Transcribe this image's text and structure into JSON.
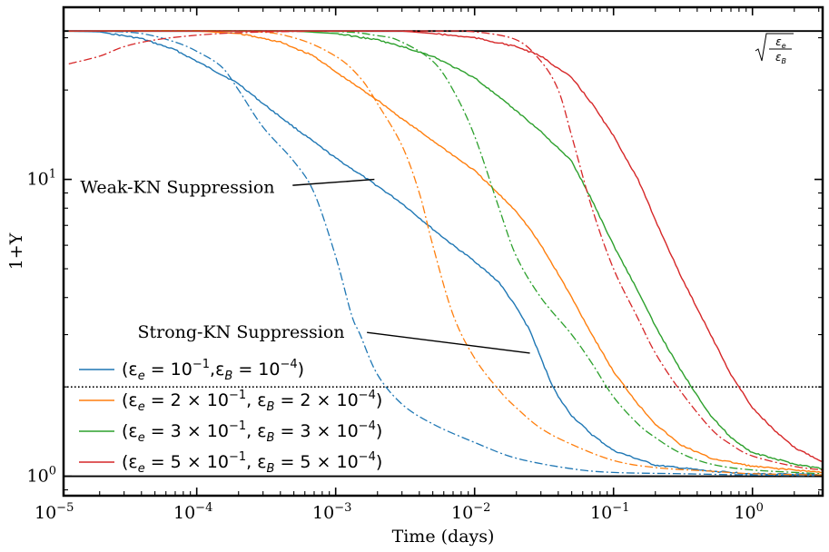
{
  "chart_data": {
    "type": "line",
    "xlabel": "Time (days)",
    "ylabel": "1+Y",
    "xscale": "log",
    "yscale": "log",
    "xlim": [
      1.1e-05,
      3.2
    ],
    "ylim": [
      0.86,
      38
    ],
    "x_ticks": [
      {
        "value": 1e-05,
        "base": "10",
        "exp": "−5"
      },
      {
        "value": 0.0001,
        "base": "10",
        "exp": "−4"
      },
      {
        "value": 0.001,
        "base": "10",
        "exp": "−3"
      },
      {
        "value": 0.01,
        "base": "10",
        "exp": "−2"
      },
      {
        "value": 0.1,
        "base": "10",
        "exp": "−1"
      },
      {
        "value": 1,
        "base": "10",
        "exp": "0"
      }
    ],
    "y_ticks": [
      {
        "value": 1,
        "base": "10",
        "exp": "0"
      },
      {
        "value": 10,
        "base": "10",
        "exp": "1"
      }
    ],
    "legend_position": "lower-left",
    "reference_lines": [
      {
        "style": "solid",
        "y": 31.6,
        "label_lines": [
          "√(ε",
          "e",
          "/ε",
          "B",
          ")"
        ]
      },
      {
        "style": "dotted",
        "y": 2.0
      },
      {
        "style": "solid",
        "y": 1.0
      }
    ],
    "annotations": [
      {
        "text": "Weak-KN Suppression",
        "text_x": 1.45e-05,
        "text_y": 9.4,
        "arrow_from": [
          0.00049,
          9.55
        ],
        "arrow_to": [
          0.0019,
          10.0
        ]
      },
      {
        "text": "Strong-KN Suppression",
        "text_x": 3.75e-05,
        "text_y": 3.05,
        "arrow_from": [
          0.00168,
          3.05
        ],
        "arrow_to": [
          0.025,
          2.6
        ]
      }
    ],
    "series": [
      {
        "name": "(εe = 10⁻¹, εB = 10⁻⁴)",
        "legend": {
          "pre": "(ε",
          "sub1": "e",
          "mid1": " = 10",
          "sup1": "−1",
          "mid2": ",ε",
          "sub2": "B",
          "mid3": " = 10",
          "sup2": "−4",
          "post": ")"
        },
        "color": "#1f77b4",
        "solid": [
          [
            1.2e-05,
            31.6
          ],
          [
            2e-05,
            31.4
          ],
          [
            4e-05,
            29.8
          ],
          [
            7e-05,
            27.3
          ],
          [
            0.0001,
            25
          ],
          [
            0.0002,
            21
          ],
          [
            0.0003,
            18
          ],
          [
            0.0005,
            15
          ],
          [
            0.001,
            11.8
          ],
          [
            0.002,
            9.5
          ],
          [
            0.003,
            8.3
          ],
          [
            0.005,
            6.8
          ],
          [
            0.007,
            6.0
          ],
          [
            0.01,
            5.3
          ],
          [
            0.015,
            4.5
          ],
          [
            0.02,
            3.7
          ],
          [
            0.025,
            3.1
          ],
          [
            0.03,
            2.5
          ],
          [
            0.035,
            2.1
          ],
          [
            0.04,
            1.85
          ],
          [
            0.05,
            1.6
          ],
          [
            0.07,
            1.38
          ],
          [
            0.1,
            1.22
          ],
          [
            0.2,
            1.09
          ],
          [
            0.5,
            1.04
          ],
          [
            1,
            1.02
          ],
          [
            3.2,
            1.01
          ]
        ],
        "dashdot": [
          [
            1.2e-05,
            31.6
          ],
          [
            2e-05,
            31.6
          ],
          [
            4e-05,
            31
          ],
          [
            7e-05,
            29
          ],
          [
            0.0001,
            27
          ],
          [
            0.00015,
            24
          ],
          [
            0.0002,
            20
          ],
          [
            0.0003,
            15
          ],
          [
            0.0005,
            11.5
          ],
          [
            0.0007,
            9
          ],
          [
            0.001,
            5.5
          ],
          [
            0.0013,
            3.5
          ],
          [
            0.0015,
            3.0
          ],
          [
            0.002,
            2.2
          ],
          [
            0.003,
            1.75
          ],
          [
            0.005,
            1.5
          ],
          [
            0.01,
            1.3
          ],
          [
            0.02,
            1.15
          ],
          [
            0.05,
            1.06
          ],
          [
            0.1,
            1.03
          ],
          [
            0.3,
            1.02
          ],
          [
            1,
            1.01
          ],
          [
            3.2,
            1.005
          ]
        ]
      },
      {
        "name": "(εe = 2×10⁻¹, εB = 2×10⁻⁴)",
        "legend": {
          "pre": "(ε",
          "sub1": "e",
          "mid1": " = 2 × 10",
          "sup1": "−1",
          "mid2": ", ε",
          "sub2": "B",
          "mid3": " = 2 × 10",
          "sup2": "−4",
          "post": ")"
        },
        "color": "#ff7f0e",
        "solid": [
          [
            1.2e-05,
            31.6
          ],
          [
            0.0001,
            31.6
          ],
          [
            0.0002,
            31
          ],
          [
            0.0004,
            29
          ],
          [
            0.0007,
            26
          ],
          [
            0.001,
            23
          ],
          [
            0.002,
            18.5
          ],
          [
            0.003,
            16
          ],
          [
            0.005,
            13.5
          ],
          [
            0.01,
            10.7
          ],
          [
            0.015,
            8.9
          ],
          [
            0.02,
            7.8
          ],
          [
            0.025,
            6.8
          ],
          [
            0.03,
            6
          ],
          [
            0.04,
            4.8
          ],
          [
            0.05,
            4
          ],
          [
            0.07,
            3.0
          ],
          [
            0.1,
            2.25
          ],
          [
            0.15,
            1.75
          ],
          [
            0.2,
            1.5
          ],
          [
            0.3,
            1.28
          ],
          [
            0.5,
            1.15
          ],
          [
            1,
            1.08
          ],
          [
            3.2,
            1.03
          ]
        ],
        "dashdot": [
          [
            1.2e-05,
            31.6
          ],
          [
            0.0002,
            31.6
          ],
          [
            0.0005,
            30
          ],
          [
            0.001,
            26
          ],
          [
            0.0015,
            22
          ],
          [
            0.002,
            18
          ],
          [
            0.003,
            13
          ],
          [
            0.004,
            9
          ],
          [
            0.005,
            6
          ],
          [
            0.007,
            3.5
          ],
          [
            0.01,
            2.5
          ],
          [
            0.015,
            1.95
          ],
          [
            0.02,
            1.7
          ],
          [
            0.03,
            1.45
          ],
          [
            0.05,
            1.28
          ],
          [
            0.1,
            1.13
          ],
          [
            0.2,
            1.07
          ],
          [
            0.5,
            1.04
          ],
          [
            1,
            1.02
          ],
          [
            3.2,
            1.01
          ]
        ]
      },
      {
        "name": "(εe = 3×10⁻¹, εB = 3×10⁻⁴)",
        "legend": {
          "pre": "(ε",
          "sub1": "e",
          "mid1": " = 3 × 10",
          "sup1": "−1",
          "mid2": ", ε",
          "sub2": "B",
          "mid3": " = 3 × 10",
          "sup2": "−4",
          "post": ")"
        },
        "color": "#2ca02c",
        "solid": [
          [
            1.2e-05,
            31.6
          ],
          [
            0.0005,
            31.6
          ],
          [
            0.001,
            31
          ],
          [
            0.002,
            29.5
          ],
          [
            0.003,
            28
          ],
          [
            0.005,
            26
          ],
          [
            0.01,
            22
          ],
          [
            0.02,
            17
          ],
          [
            0.03,
            14.5
          ],
          [
            0.05,
            11.5
          ],
          [
            0.07,
            8.5
          ],
          [
            0.1,
            6
          ],
          [
            0.15,
            4.2
          ],
          [
            0.2,
            3.2
          ],
          [
            0.3,
            2.3
          ],
          [
            0.5,
            1.6
          ],
          [
            0.7,
            1.35
          ],
          [
            1,
            1.2
          ],
          [
            2,
            1.1
          ],
          [
            3.2,
            1.06
          ]
        ],
        "dashdot": [
          [
            1.2e-05,
            31.6
          ],
          [
            0.0007,
            31.6
          ],
          [
            0.002,
            30.5
          ],
          [
            0.003,
            29
          ],
          [
            0.005,
            25
          ],
          [
            0.007,
            20
          ],
          [
            0.01,
            14
          ],
          [
            0.015,
            8
          ],
          [
            0.02,
            5.5
          ],
          [
            0.03,
            4
          ],
          [
            0.05,
            3
          ],
          [
            0.07,
            2.4
          ],
          [
            0.1,
            1.85
          ],
          [
            0.15,
            1.5
          ],
          [
            0.2,
            1.35
          ],
          [
            0.3,
            1.2
          ],
          [
            0.5,
            1.1
          ],
          [
            1,
            1.05
          ],
          [
            3.2,
            1.02
          ]
        ]
      },
      {
        "name": "(εe = 5×10⁻¹, εB = 5×10⁻⁴)",
        "legend": {
          "pre": "(ε",
          "sub1": "e",
          "mid1": " = 5 × 10",
          "sup1": "−1",
          "mid2": ", ε",
          "sub2": "B",
          "mid3": " = 5 × 10",
          "sup2": "−4",
          "post": ")"
        },
        "color": "#d62728",
        "solid": [
          [
            1.2e-05,
            31.6
          ],
          [
            0.003,
            31.6
          ],
          [
            0.005,
            31
          ],
          [
            0.01,
            30
          ],
          [
            0.02,
            28
          ],
          [
            0.03,
            26
          ],
          [
            0.05,
            22
          ],
          [
            0.07,
            18
          ],
          [
            0.1,
            14
          ],
          [
            0.15,
            10
          ],
          [
            0.2,
            7.3
          ],
          [
            0.3,
            4.8
          ],
          [
            0.5,
            3
          ],
          [
            0.7,
            2.2
          ],
          [
            1,
            1.7
          ],
          [
            1.5,
            1.4
          ],
          [
            2,
            1.25
          ],
          [
            3.2,
            1.12
          ]
        ],
        "dashdot": [
          [
            1.2e-05,
            24.5
          ],
          [
            2e-05,
            26
          ],
          [
            3e-05,
            28
          ],
          [
            5e-05,
            29.5
          ],
          [
            0.0001,
            30.6
          ],
          [
            0.0002,
            31.2
          ],
          [
            0.0005,
            31.5
          ],
          [
            0.001,
            31.6
          ],
          [
            0.005,
            31.6
          ],
          [
            0.01,
            31.4
          ],
          [
            0.02,
            29.5
          ],
          [
            0.03,
            25
          ],
          [
            0.04,
            20
          ],
          [
            0.05,
            14
          ],
          [
            0.07,
            8
          ],
          [
            0.1,
            5
          ],
          [
            0.15,
            3.4
          ],
          [
            0.2,
            2.6
          ],
          [
            0.3,
            1.95
          ],
          [
            0.5,
            1.45
          ],
          [
            0.7,
            1.28
          ],
          [
            1,
            1.17
          ],
          [
            2,
            1.08
          ],
          [
            3.2,
            1.05
          ]
        ]
      }
    ]
  }
}
